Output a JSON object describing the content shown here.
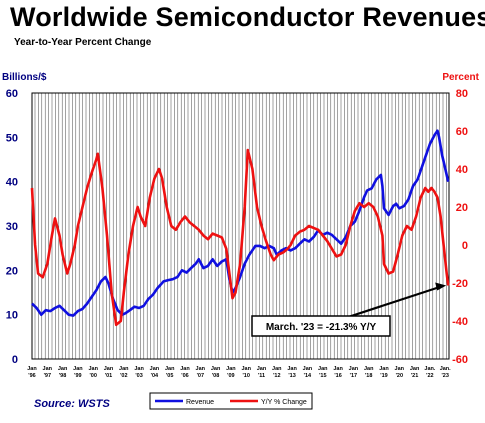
{
  "title": "Worldwide Semiconductor Revenues",
  "subtitle": "Year-to-Year Percent Change",
  "source": "Source: WSTS",
  "chart_data": {
    "type": "line",
    "left_axis_label": "Billions/$",
    "right_axis_label": "Percent",
    "left_ylim": [
      0,
      60
    ],
    "right_ylim": [
      -60,
      80
    ],
    "left_ticks": [
      "60",
      "50",
      "40",
      "30",
      "20",
      "10",
      "0"
    ],
    "right_ticks": [
      "80",
      "60",
      "40",
      "20",
      "0",
      "-20",
      "-40",
      "-60"
    ],
    "x_tick_labels": [
      {
        "top": "Jan",
        "bottom": "'96"
      },
      {
        "top": "Jan",
        "bottom": "'97"
      },
      {
        "top": "Jan",
        "bottom": "'98"
      },
      {
        "top": "Jan",
        "bottom": "'99"
      },
      {
        "top": "Jan",
        "bottom": "'00"
      },
      {
        "top": "Jan",
        "bottom": "'01"
      },
      {
        "top": "Jan",
        "bottom": "'02"
      },
      {
        "top": "Jan",
        "bottom": "'03"
      },
      {
        "top": "Jan",
        "bottom": "'04"
      },
      {
        "top": "Jan",
        "bottom": "'05"
      },
      {
        "top": "Jan",
        "bottom": "'06"
      },
      {
        "top": "Jan",
        "bottom": "'07"
      },
      {
        "top": "Jan",
        "bottom": "'08"
      },
      {
        "top": "Jan",
        "bottom": "'09"
      },
      {
        "top": "Jan",
        "bottom": "'10"
      },
      {
        "top": "Jan",
        "bottom": "'11"
      },
      {
        "top": "Jan",
        "bottom": "'12"
      },
      {
        "top": "Jan",
        "bottom": "'13"
      },
      {
        "top": "Jan",
        "bottom": "'14"
      },
      {
        "top": "Jan",
        "bottom": "'15"
      },
      {
        "top": "Jan",
        "bottom": "'16"
      },
      {
        "top": "Jan",
        "bottom": "'17"
      },
      {
        "top": "Jan",
        "bottom": "'18"
      },
      {
        "top": "Jan",
        "bottom": "'19"
      },
      {
        "top": "Jan",
        "bottom": "'20"
      },
      {
        "top": "Jan",
        "bottom": "'21"
      },
      {
        "top": "Jan.",
        "bottom": "'22"
      },
      {
        "top": "Jan.",
        "bottom": "'23"
      }
    ],
    "x_range": [
      1996.0,
      2023.25
    ],
    "grid": "vertical",
    "legend_position": "bottom-center",
    "series": [
      {
        "name": "Revenue",
        "axis": "left",
        "color": "#1010e0",
        "points": [
          [
            1996.0,
            12.5
          ],
          [
            1996.3,
            11.5
          ],
          [
            1996.6,
            10.0
          ],
          [
            1996.9,
            11.0
          ],
          [
            1997.2,
            10.8
          ],
          [
            1997.5,
            11.5
          ],
          [
            1997.8,
            12.0
          ],
          [
            1998.1,
            11.0
          ],
          [
            1998.4,
            10.0
          ],
          [
            1998.7,
            9.8
          ],
          [
            1999.0,
            10.8
          ],
          [
            1999.3,
            11.3
          ],
          [
            1999.6,
            12.5
          ],
          [
            1999.9,
            14.0
          ],
          [
            2000.2,
            15.5
          ],
          [
            2000.5,
            17.5
          ],
          [
            2000.8,
            18.5
          ],
          [
            2001.0,
            17.0
          ],
          [
            2001.3,
            13.5
          ],
          [
            2001.6,
            11.0
          ],
          [
            2001.9,
            10.0
          ],
          [
            2002.1,
            10.3
          ],
          [
            2002.4,
            11.0
          ],
          [
            2002.7,
            11.8
          ],
          [
            2003.0,
            11.5
          ],
          [
            2003.3,
            12.0
          ],
          [
            2003.6,
            13.5
          ],
          [
            2003.9,
            14.5
          ],
          [
            2004.2,
            16.0
          ],
          [
            2004.6,
            17.5
          ],
          [
            2004.9,
            17.8
          ],
          [
            2005.2,
            18.0
          ],
          [
            2005.5,
            18.5
          ],
          [
            2005.8,
            20.0
          ],
          [
            2006.1,
            19.5
          ],
          [
            2006.4,
            20.5
          ],
          [
            2006.7,
            21.5
          ],
          [
            2006.9,
            22.5
          ],
          [
            2007.2,
            20.5
          ],
          [
            2007.5,
            21.0
          ],
          [
            2007.8,
            22.5
          ],
          [
            2008.1,
            21.0
          ],
          [
            2008.4,
            22.0
          ],
          [
            2008.7,
            22.5
          ],
          [
            2008.9,
            18.0
          ],
          [
            2009.1,
            15.0
          ],
          [
            2009.3,
            16.0
          ],
          [
            2009.6,
            18.5
          ],
          [
            2009.9,
            21.5
          ],
          [
            2010.2,
            23.5
          ],
          [
            2010.6,
            25.5
          ],
          [
            2010.9,
            25.5
          ],
          [
            2011.2,
            25.0
          ],
          [
            2011.5,
            25.5
          ],
          [
            2011.8,
            25.0
          ],
          [
            2012.0,
            23.5
          ],
          [
            2012.3,
            24.5
          ],
          [
            2012.6,
            25.0
          ],
          [
            2012.9,
            24.5
          ],
          [
            2013.2,
            25.0
          ],
          [
            2013.5,
            26.0
          ],
          [
            2013.8,
            27.0
          ],
          [
            2014.1,
            26.5
          ],
          [
            2014.4,
            27.5
          ],
          [
            2014.7,
            29.0
          ],
          [
            2015.0,
            28.0
          ],
          [
            2015.3,
            28.5
          ],
          [
            2015.6,
            28.0
          ],
          [
            2015.9,
            27.0
          ],
          [
            2016.2,
            26.0
          ],
          [
            2016.5,
            27.5
          ],
          [
            2016.8,
            30.0
          ],
          [
            2017.1,
            31.0
          ],
          [
            2017.4,
            33.5
          ],
          [
            2017.7,
            36.5
          ],
          [
            2017.9,
            38.0
          ],
          [
            2018.2,
            38.5
          ],
          [
            2018.5,
            40.5
          ],
          [
            2018.8,
            41.5
          ],
          [
            2018.9,
            39.0
          ],
          [
            2019.0,
            34.0
          ],
          [
            2019.3,
            32.5
          ],
          [
            2019.6,
            34.5
          ],
          [
            2019.8,
            35.0
          ],
          [
            2020.0,
            34.0
          ],
          [
            2020.3,
            34.5
          ],
          [
            2020.6,
            36.0
          ],
          [
            2020.9,
            39.0
          ],
          [
            2021.2,
            40.5
          ],
          [
            2021.5,
            43.5
          ],
          [
            2021.8,
            46.5
          ],
          [
            2022.0,
            48.5
          ],
          [
            2022.3,
            50.5
          ],
          [
            2022.5,
            51.5
          ],
          [
            2022.6,
            50.0
          ],
          [
            2022.8,
            46.0
          ],
          [
            2023.0,
            43.0
          ],
          [
            2023.2,
            40.0
          ]
        ]
      },
      {
        "name": "Y/Y % Change",
        "axis": "right",
        "color": "#ee1111",
        "points": [
          [
            1996.0,
            30
          ],
          [
            1996.2,
            0
          ],
          [
            1996.4,
            -15
          ],
          [
            1996.7,
            -17
          ],
          [
            1997.0,
            -10
          ],
          [
            1997.3,
            5
          ],
          [
            1997.5,
            14
          ],
          [
            1997.8,
            5
          ],
          [
            1998.0,
            -5
          ],
          [
            1998.3,
            -15
          ],
          [
            1998.5,
            -10
          ],
          [
            1998.8,
            0
          ],
          [
            1999.0,
            10
          ],
          [
            1999.3,
            20
          ],
          [
            1999.6,
            30
          ],
          [
            1999.9,
            38
          ],
          [
            2000.2,
            45
          ],
          [
            2000.3,
            48
          ],
          [
            2000.6,
            30
          ],
          [
            2000.9,
            5
          ],
          [
            2001.2,
            -25
          ],
          [
            2001.5,
            -42
          ],
          [
            2001.8,
            -40
          ],
          [
            2002.0,
            -25
          ],
          [
            2002.3,
            -5
          ],
          [
            2002.6,
            10
          ],
          [
            2002.9,
            20
          ],
          [
            2003.1,
            15
          ],
          [
            2003.4,
            10
          ],
          [
            2003.7,
            25
          ],
          [
            2004.0,
            35
          ],
          [
            2004.3,
            40
          ],
          [
            2004.5,
            35
          ],
          [
            2004.8,
            20
          ],
          [
            2005.1,
            10
          ],
          [
            2005.4,
            8
          ],
          [
            2005.7,
            12
          ],
          [
            2006.0,
            15
          ],
          [
            2006.3,
            12
          ],
          [
            2006.6,
            10
          ],
          [
            2006.9,
            8
          ],
          [
            2007.2,
            5
          ],
          [
            2007.5,
            3
          ],
          [
            2007.8,
            6
          ],
          [
            2008.1,
            5
          ],
          [
            2008.4,
            4
          ],
          [
            2008.7,
            -2
          ],
          [
            2008.9,
            -15
          ],
          [
            2009.1,
            -28
          ],
          [
            2009.3,
            -25
          ],
          [
            2009.6,
            -10
          ],
          [
            2009.9,
            20
          ],
          [
            2010.1,
            50
          ],
          [
            2010.4,
            40
          ],
          [
            2010.7,
            20
          ],
          [
            2011.0,
            10
          ],
          [
            2011.3,
            2
          ],
          [
            2011.6,
            -5
          ],
          [
            2011.8,
            -8
          ],
          [
            2012.1,
            -5
          ],
          [
            2012.4,
            -4
          ],
          [
            2012.7,
            -2
          ],
          [
            2012.9,
            0
          ],
          [
            2013.2,
            5
          ],
          [
            2013.5,
            7
          ],
          [
            2013.8,
            8
          ],
          [
            2014.1,
            10
          ],
          [
            2014.4,
            9
          ],
          [
            2014.7,
            8
          ],
          [
            2015.0,
            5
          ],
          [
            2015.3,
            2
          ],
          [
            2015.6,
            -2
          ],
          [
            2015.9,
            -6
          ],
          [
            2016.2,
            -5
          ],
          [
            2016.5,
            0
          ],
          [
            2016.8,
            10
          ],
          [
            2017.1,
            18
          ],
          [
            2017.4,
            22
          ],
          [
            2017.7,
            20
          ],
          [
            2018.0,
            22
          ],
          [
            2018.3,
            20
          ],
          [
            2018.6,
            15
          ],
          [
            2018.9,
            5
          ],
          [
            2019.0,
            -10
          ],
          [
            2019.3,
            -15
          ],
          [
            2019.6,
            -14
          ],
          [
            2019.9,
            -5
          ],
          [
            2020.2,
            5
          ],
          [
            2020.5,
            10
          ],
          [
            2020.8,
            8
          ],
          [
            2021.1,
            15
          ],
          [
            2021.4,
            25
          ],
          [
            2021.7,
            30
          ],
          [
            2021.9,
            28
          ],
          [
            2022.1,
            30
          ],
          [
            2022.3,
            28
          ],
          [
            2022.5,
            25
          ],
          [
            2022.7,
            15
          ],
          [
            2022.9,
            0
          ],
          [
            2023.1,
            -15
          ],
          [
            2023.2,
            -21.3
          ]
        ]
      }
    ],
    "annotation": {
      "text": "March. '23 = -21.3% Y/Y",
      "x": 2023.2,
      "y": -21.3
    }
  }
}
